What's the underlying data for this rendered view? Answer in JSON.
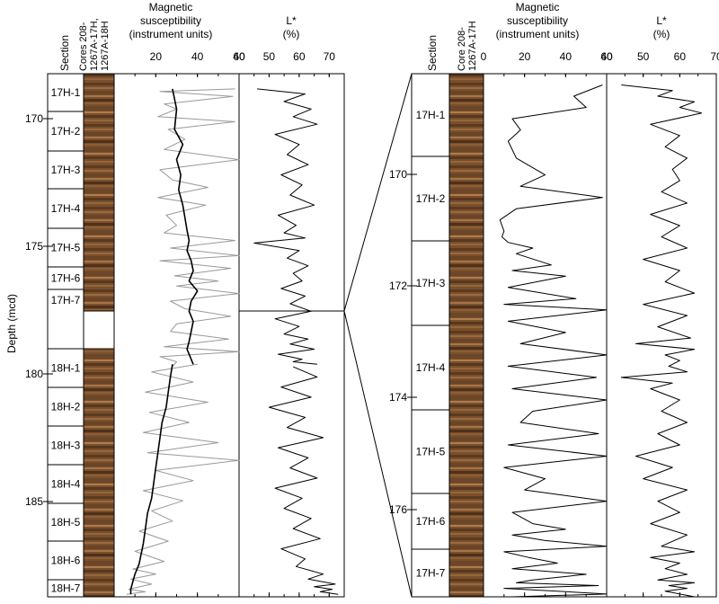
{
  "y_axis_label": "Depth (mcd)",
  "left_panel": {
    "section_header": "Section",
    "core_header": [
      "Cores 208-",
      "1267A-17H,",
      "1267A-18H"
    ],
    "ms_header": [
      "Magnetic",
      "susceptibility",
      "(instrument units)"
    ],
    "lstar_header": [
      "L*",
      "(%)"
    ],
    "depth_ticks": [
      "170",
      "175",
      "180",
      "185"
    ],
    "sections": [
      "17H-1",
      "17H-2",
      "17H-3",
      "17H-4",
      "17H-5",
      "17H-6",
      "17H-7",
      "18H-1",
      "18H-2",
      "18H-3",
      "18H-4",
      "18H-5",
      "18H-6",
      "18H-7"
    ]
  },
  "right_panel": {
    "section_header": "Section",
    "core_header": [
      "Core 208-",
      "1267A-17H"
    ],
    "ms_header": [
      "Magnetic",
      "susceptibility",
      "(instrument units)"
    ],
    "lstar_header": [
      "L*",
      "(%)"
    ],
    "depth_ticks": [
      "170",
      "172",
      "174",
      "176"
    ],
    "sections": [
      "17H-1",
      "17H-2",
      "17H-3",
      "17H-4",
      "17H-5",
      "17H-6",
      "17H-7"
    ]
  },
  "chart_data": [
    {
      "type": "line",
      "panel": "left",
      "title": "",
      "ylabel": "Depth (mcd)",
      "ylim": [
        167.6,
        188.3
      ],
      "y_reversed": true,
      "tracks": [
        {
          "xlabel": "Magnetic susceptibility (instrument units)",
          "xlim": [
            0,
            60
          ],
          "xticks": [
            "20",
            "40",
            "60"
          ],
          "series": [
            {
              "color": "#999999",
              "stroke": "raw",
              "x": [
                58,
                22,
                57,
                24,
                30,
                21,
                58,
                26,
                34,
                24,
                60,
                22,
                28,
                45,
                21,
                44,
                25,
                30,
                24,
                58,
                27,
                60,
                22,
                56,
                29,
                50,
                30,
                60,
                27,
                34,
                56,
                30,
                27,
                55,
                24,
                60,
                22,
                30,
                28
              ],
              "y": [
                168.2,
                168.3,
                168.5,
                168.8,
                169.0,
                169.3,
                169.5,
                169.8,
                170.2,
                170.6,
                171.0,
                171.4,
                171.8,
                172.1,
                172.5,
                172.8,
                173.2,
                173.6,
                173.9,
                174.2,
                174.5,
                174.8,
                175.0,
                175.3,
                175.6,
                175.8,
                176.0,
                176.3,
                176.6,
                176.9,
                177.2,
                177.5,
                177.8,
                178.1,
                178.4,
                178.6,
                178.8,
                179.0,
                179.2
              ]
            },
            {
              "color": "#000000",
              "stroke": "smoothed",
              "x": [
                28,
                30,
                29,
                33,
                30,
                32,
                31,
                33,
                34,
                35,
                36,
                35,
                37,
                38,
                36,
                40,
                37,
                36,
                38,
                37,
                36,
                35,
                36,
                37,
                38
              ],
              "y": [
                168.2,
                169.0,
                169.8,
                170.4,
                171.0,
                171.6,
                172.2,
                172.8,
                173.3,
                173.8,
                174.2,
                174.6,
                175.0,
                175.4,
                175.8,
                176.2,
                176.6,
                177.0,
                177.4,
                177.8,
                178.2,
                178.5,
                178.7,
                178.9,
                179.1
              ]
            },
            {
              "color": "#999999",
              "stroke": "raw",
              "x": [
                40,
                18,
                38,
                15,
                45,
                17,
                36,
                14,
                50,
                16,
                60,
                20,
                38,
                14,
                33,
                18,
                28,
                12,
                26,
                10,
                24,
                9,
                20,
                8,
                18,
                7,
                15,
                6
              ],
              "y": [
                179.1,
                179.4,
                179.8,
                180.2,
                180.6,
                181.0,
                181.4,
                181.8,
                182.2,
                182.6,
                182.9,
                183.3,
                183.7,
                184.1,
                184.5,
                184.9,
                185.3,
                185.7,
                186.1,
                186.5,
                186.9,
                187.2,
                187.4,
                187.6,
                187.8,
                188.0,
                188.1,
                188.2
              ]
            },
            {
              "color": "#000000",
              "stroke": "smoothed",
              "x": [
                28,
                27,
                26,
                25,
                23,
                22,
                21,
                20,
                19,
                18,
                16,
                15,
                14,
                13,
                12,
                10,
                9,
                8,
                8
              ],
              "y": [
                179.1,
                179.6,
                180.2,
                180.8,
                181.4,
                182.0,
                182.6,
                183.2,
                183.8,
                184.4,
                185.0,
                185.6,
                186.2,
                186.6,
                187.0,
                187.4,
                187.7,
                188.0,
                188.2
              ]
            }
          ]
        },
        {
          "xlabel": "L* (%)",
          "xlim": [
            40,
            75
          ],
          "xticks": [
            "40",
            "50",
            "60",
            "70"
          ],
          "series": [
            {
              "color": "#000000",
              "x": [
                46,
                62,
                55,
                64,
                58,
                66,
                52,
                60,
                56,
                63,
                54,
                61,
                57,
                65,
                53,
                59,
                55,
                62,
                45,
                60,
                56,
                63,
                58,
                61,
                54,
                62,
                57,
                64,
                52,
                60,
                55,
                63,
                57,
                65,
                53,
                61,
                58,
                66
              ],
              "y": [
                168.2,
                168.4,
                168.7,
                169.0,
                169.3,
                169.6,
                170.0,
                170.4,
                170.8,
                171.2,
                171.6,
                172.0,
                172.4,
                172.8,
                173.2,
                173.6,
                173.9,
                174.1,
                174.3,
                174.6,
                174.9,
                175.2,
                175.5,
                175.8,
                176.1,
                176.4,
                176.7,
                177.0,
                177.3,
                177.6,
                177.9,
                178.1,
                178.3,
                178.5,
                178.7,
                178.9,
                179.0,
                179.1
              ]
            },
            {
              "color": "#000000",
              "x": [
                58,
                66,
                54,
                64,
                50,
                62,
                56,
                68,
                53,
                63,
                57,
                66,
                52,
                61,
                55,
                64,
                58,
                67,
                54,
                62,
                59,
                68,
                63,
                72,
                65,
                71,
                67,
                73
              ],
              "y": [
                179.2,
                179.6,
                180.0,
                180.4,
                180.8,
                181.2,
                181.6,
                182.0,
                182.4,
                182.8,
                183.2,
                183.6,
                184.0,
                184.4,
                184.8,
                185.2,
                185.6,
                186.0,
                186.4,
                186.8,
                187.1,
                187.4,
                187.6,
                187.8,
                187.9,
                188.0,
                188.1,
                188.2
              ]
            }
          ]
        }
      ]
    },
    {
      "type": "line",
      "panel": "right",
      "title": "",
      "ylabel": "",
      "ylim": [
        168.0,
        177.3
      ],
      "y_reversed": true,
      "tracks": [
        {
          "xlabel": "Magnetic susceptibility (instrument units)",
          "xlim": [
            0,
            60
          ],
          "xticks": [
            "0",
            "20",
            "40",
            "60"
          ],
          "series": [
            {
              "color": "#000000",
              "x": [
                58,
                44,
                50,
                14,
                18,
                12,
                16,
                30,
                18,
                58,
                16,
                8,
                10,
                9,
                12,
                24,
                16,
                33,
                14,
                40,
                12,
                45,
                10,
                60,
                12,
                40,
                18,
                60,
                12,
                55,
                14,
                60,
                24,
                18,
                56,
                12,
                60,
                10,
                30,
                20,
                60,
                14,
                24,
                40,
                14,
                30,
                60,
                10,
                22,
                36,
                14,
                50,
                24,
                16,
                56,
                10,
                36,
                60,
                14
              ],
              "y": [
                168.2,
                168.4,
                168.6,
                168.8,
                169.0,
                169.2,
                169.5,
                169.8,
                170.0,
                170.2,
                170.4,
                170.6,
                170.8,
                170.9,
                171.0,
                171.1,
                171.2,
                171.4,
                171.5,
                171.6,
                171.8,
                172.0,
                172.1,
                172.2,
                172.4,
                172.6,
                172.8,
                173.0,
                173.2,
                173.4,
                173.6,
                173.8,
                174.0,
                174.2,
                174.4,
                174.6,
                174.8,
                175.0,
                175.2,
                175.4,
                175.6,
                175.8,
                176.0,
                176.1,
                176.2,
                176.3,
                176.4,
                176.5,
                176.6,
                176.7,
                176.8,
                176.9,
                177.0,
                177.05,
                177.1,
                177.15,
                177.2,
                177.25,
                177.3
              ]
            }
          ]
        },
        {
          "xlabel": "L* (%)",
          "xlim": [
            40,
            70
          ],
          "xticks": [
            "40",
            "50",
            "60",
            "70"
          ],
          "series": [
            {
              "color": "#000000",
              "x": [
                44,
                58,
                54,
                64,
                60,
                66,
                52,
                60,
                56,
                62,
                58,
                60,
                55,
                62,
                52,
                60,
                55,
                62,
                50,
                60,
                56,
                64,
                50,
                62,
                54,
                63,
                48,
                64,
                56,
                60,
                57,
                62,
                44,
                58,
                52,
                60,
                55,
                62,
                54,
                60,
                48,
                58,
                50,
                62,
                54,
                60,
                52,
                62,
                55,
                64,
                52,
                60,
                56,
                62,
                54,
                64,
                57,
                62,
                56,
                64
              ],
              "y": [
                168.2,
                168.3,
                168.4,
                168.5,
                168.6,
                168.7,
                168.9,
                169.1,
                169.3,
                169.5,
                169.7,
                169.9,
                170.1,
                170.3,
                170.5,
                170.7,
                170.9,
                171.1,
                171.3,
                171.5,
                171.7,
                171.9,
                172.1,
                172.3,
                172.5,
                172.7,
                172.8,
                172.9,
                173.0,
                173.1,
                173.2,
                173.3,
                173.4,
                173.5,
                173.6,
                173.8,
                174.0,
                174.2,
                174.4,
                174.6,
                174.8,
                175.0,
                175.2,
                175.4,
                175.6,
                175.8,
                176.0,
                176.2,
                176.4,
                176.5,
                176.6,
                176.7,
                176.8,
                176.9,
                177.0,
                177.05,
                177.1,
                177.15,
                177.2,
                177.3
              ]
            }
          ]
        }
      ]
    }
  ]
}
